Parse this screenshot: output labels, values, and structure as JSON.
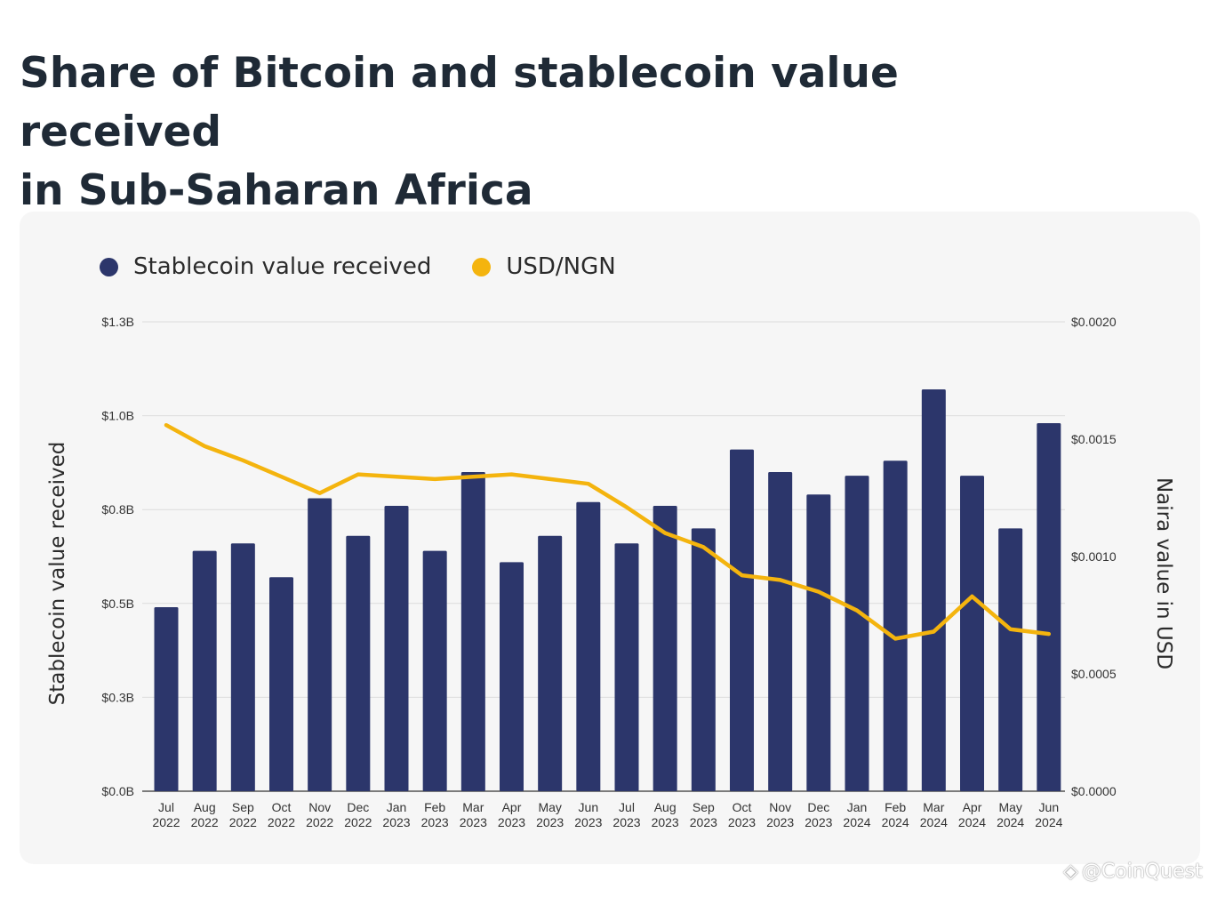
{
  "title": {
    "line1": "Share of Bitcoin and stablecoin value received",
    "line2": "in Sub-Saharan Africa"
  },
  "legend": [
    {
      "label": "Stablecoin value received",
      "color": "#2c366b"
    },
    {
      "label": "USD/NGN",
      "color": "#f4b40e"
    }
  ],
  "watermark": {
    "icon": "binance-diamond-icon",
    "text": "@CoinQuest"
  },
  "chart_data": {
    "type": "bar+line",
    "categories": [
      [
        "Jul",
        "2022"
      ],
      [
        "Aug",
        "2022"
      ],
      [
        "Sep",
        "2022"
      ],
      [
        "Oct",
        "2022"
      ],
      [
        "Nov",
        "2022"
      ],
      [
        "Dec",
        "2022"
      ],
      [
        "Jan",
        "2023"
      ],
      [
        "Feb",
        "2023"
      ],
      [
        "Mar",
        "2023"
      ],
      [
        "Apr",
        "2023"
      ],
      [
        "May",
        "2023"
      ],
      [
        "Jun",
        "2023"
      ],
      [
        "Jul",
        "2023"
      ],
      [
        "Aug",
        "2023"
      ],
      [
        "Sep",
        "2023"
      ],
      [
        "Oct",
        "2023"
      ],
      [
        "Nov",
        "2023"
      ],
      [
        "Dec",
        "2023"
      ],
      [
        "Jan",
        "2024"
      ],
      [
        "Feb",
        "2024"
      ],
      [
        "Mar",
        "2024"
      ],
      [
        "Apr",
        "2024"
      ],
      [
        "May",
        "2024"
      ],
      [
        "Jun",
        "2024"
      ]
    ],
    "series": [
      {
        "name": "Stablecoin value received",
        "type": "bar",
        "axis": "left",
        "color": "#2c366b",
        "values": [
          0.49,
          0.64,
          0.66,
          0.57,
          0.78,
          0.68,
          0.76,
          0.64,
          0.85,
          0.61,
          0.68,
          0.77,
          0.66,
          0.76,
          0.7,
          0.91,
          0.85,
          0.79,
          0.84,
          0.88,
          1.07,
          0.84,
          0.7,
          0.98
        ]
      },
      {
        "name": "USD/NGN",
        "type": "line",
        "axis": "right",
        "color": "#f4b40e",
        "values": [
          0.00156,
          0.00147,
          0.00141,
          0.00134,
          0.00127,
          0.00135,
          0.00134,
          0.00133,
          0.00134,
          0.00135,
          0.00133,
          0.00131,
          0.00121,
          0.0011,
          0.00104,
          0.00092,
          0.0009,
          0.00085,
          0.00077,
          0.00065,
          0.00068,
          0.00083,
          0.00069,
          0.00067
        ]
      }
    ],
    "y_left": {
      "label": "Stablecoin value received",
      "min": 0,
      "max": 1.25,
      "ticks": [
        0,
        0.25,
        0.5,
        0.75,
        1.0,
        1.25
      ],
      "tick_labels": [
        "$0.0B",
        "$0.3B",
        "$0.5B",
        "$0.8B",
        "$1.0B",
        "$1.3B"
      ]
    },
    "y_right": {
      "label": "Naira value in USD",
      "min": 0,
      "max": 0.002,
      "ticks": [
        0,
        0.0005,
        0.001,
        0.0015,
        0.002
      ],
      "tick_labels": [
        "$0.0000",
        "$0.0005",
        "$0.0010",
        "$0.0015",
        "$0.0020"
      ]
    },
    "grid": true
  }
}
